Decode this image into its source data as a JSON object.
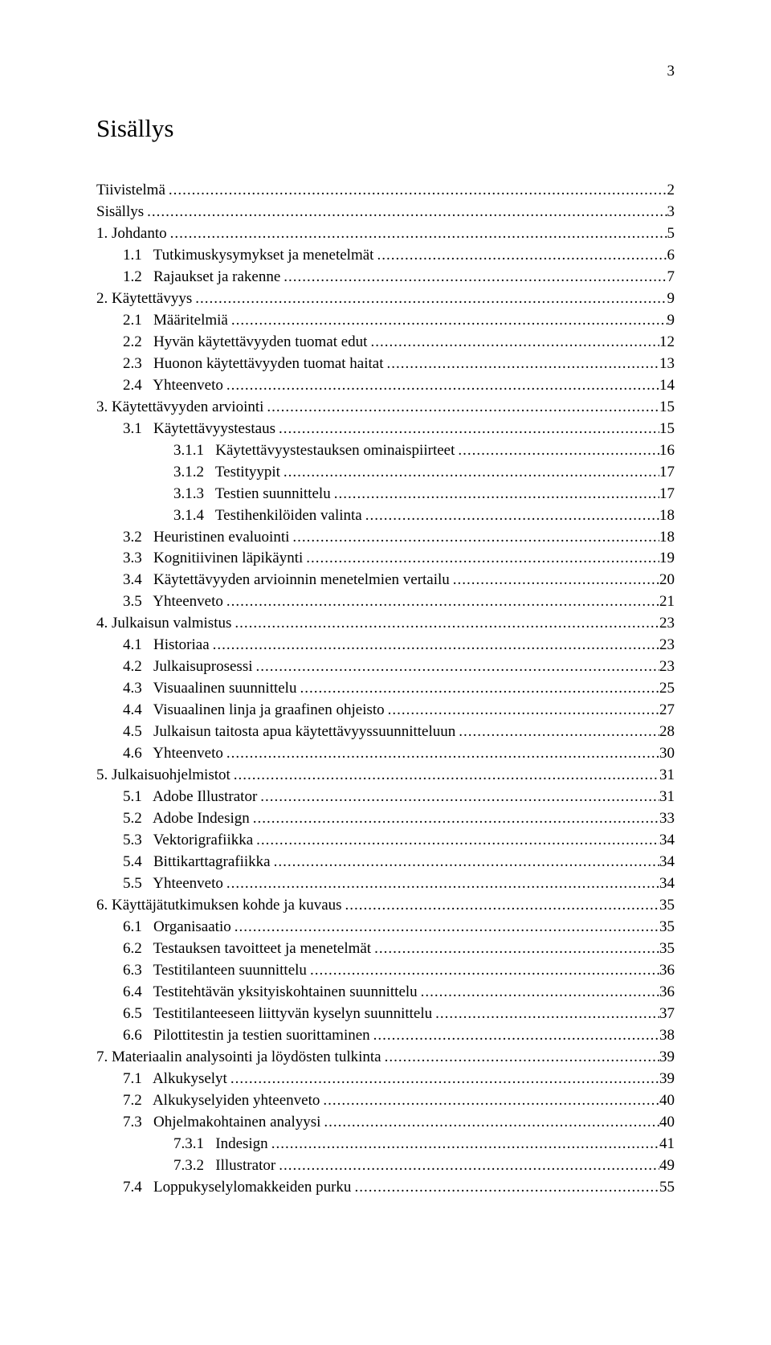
{
  "page_number": "3",
  "title": "Sisällys",
  "leader_char": ".",
  "toc": [
    {
      "label": "Tiivistelmä",
      "page": "2",
      "indent": 0
    },
    {
      "label": "Sisällys",
      "page": "3",
      "indent": 0
    },
    {
      "label": "1. Johdanto",
      "page": "5",
      "indent": 0
    },
    {
      "label": "1.1   Tutkimuskysymykset ja menetelmät",
      "page": "6",
      "indent": 1
    },
    {
      "label": "1.2   Rajaukset ja rakenne",
      "page": "7",
      "indent": 1
    },
    {
      "label": "2. Käytettävyys",
      "page": "9",
      "indent": 0
    },
    {
      "label": "2.1   Määritelmiä",
      "page": "9",
      "indent": 1
    },
    {
      "label": "2.2   Hyvän käytettävyyden tuomat edut",
      "page": "12",
      "indent": 1
    },
    {
      "label": "2.3   Huonon käytettävyyden tuomat haitat",
      "page": "13",
      "indent": 1
    },
    {
      "label": "2.4   Yhteenveto",
      "page": "14",
      "indent": 1
    },
    {
      "label": "3. Käytettävyyden arviointi",
      "page": "15",
      "indent": 0
    },
    {
      "label": "3.1   Käytettävyystestaus",
      "page": "15",
      "indent": 1
    },
    {
      "label": "3.1.1   Käytettävyystestauksen ominaispiirteet",
      "page": "16",
      "indent": 2
    },
    {
      "label": "3.1.2   Testityypit",
      "page": "17",
      "indent": 2
    },
    {
      "label": "3.1.3   Testien suunnittelu",
      "page": "17",
      "indent": 2
    },
    {
      "label": "3.1.4   Testihenkilöiden valinta",
      "page": "18",
      "indent": 2
    },
    {
      "label": "3.2   Heuristinen evaluointi",
      "page": "18",
      "indent": 1
    },
    {
      "label": "3.3   Kognitiivinen läpikäynti",
      "page": "19",
      "indent": 1
    },
    {
      "label": "3.4   Käytettävyyden arvioinnin menetelmien vertailu",
      "page": "20",
      "indent": 1
    },
    {
      "label": "3.5   Yhteenveto",
      "page": "21",
      "indent": 1
    },
    {
      "label": "4. Julkaisun valmistus",
      "page": "23",
      "indent": 0
    },
    {
      "label": "4.1   Historiaa",
      "page": "23",
      "indent": 1
    },
    {
      "label": "4.2   Julkaisuprosessi",
      "page": "23",
      "indent": 1
    },
    {
      "label": "4.3   Visuaalinen suunnittelu",
      "page": "25",
      "indent": 1
    },
    {
      "label": "4.4   Visuaalinen linja ja graafinen ohjeisto",
      "page": "27",
      "indent": 1
    },
    {
      "label": "4.5   Julkaisun taitosta apua käytettävyyssuunnitteluun",
      "page": "28",
      "indent": 1
    },
    {
      "label": "4.6   Yhteenveto",
      "page": "30",
      "indent": 1
    },
    {
      "label": "5. Julkaisuohjelmistot",
      "page": "31",
      "indent": 0
    },
    {
      "label": "5.1   Adobe Illustrator",
      "page": "31",
      "indent": 1
    },
    {
      "label": "5.2   Adobe Indesign",
      "page": "33",
      "indent": 1
    },
    {
      "label": "5.3   Vektorigrafiikka",
      "page": "34",
      "indent": 1
    },
    {
      "label": "5.4   Bittikarttagrafiikka",
      "page": "34",
      "indent": 1
    },
    {
      "label": "5.5   Yhteenveto",
      "page": "34",
      "indent": 1
    },
    {
      "label": "6. Käyttäjätutkimuksen kohde ja kuvaus",
      "page": "35",
      "indent": 0
    },
    {
      "label": "6.1   Organisaatio",
      "page": "35",
      "indent": 1
    },
    {
      "label": "6.2   Testauksen tavoitteet ja menetelmät",
      "page": "35",
      "indent": 1
    },
    {
      "label": "6.3   Testitilanteen suunnittelu",
      "page": "36",
      "indent": 1
    },
    {
      "label": "6.4   Testitehtävän yksityiskohtainen suunnittelu",
      "page": "36",
      "indent": 1
    },
    {
      "label": "6.5   Testitilanteeseen liittyvän kyselyn suunnittelu",
      "page": "37",
      "indent": 1
    },
    {
      "label": "6.6   Pilottitestin ja testien suorittaminen",
      "page": "38",
      "indent": 1
    },
    {
      "label": "7. Materiaalin analysointi ja löydösten tulkinta",
      "page": "39",
      "indent": 0
    },
    {
      "label": "7.1   Alkukyselyt",
      "page": "39",
      "indent": 1
    },
    {
      "label": "7.2   Alkukyselyiden yhteenveto",
      "page": "40",
      "indent": 1
    },
    {
      "label": "7.3   Ohjelmakohtainen analyysi",
      "page": "40",
      "indent": 1
    },
    {
      "label": "7.3.1   Indesign",
      "page": "41",
      "indent": 2
    },
    {
      "label": "7.3.2   Illustrator",
      "page": "49",
      "indent": 2
    },
    {
      "label": "7.4   Loppukyselylomakkeiden purku",
      "page": "55",
      "indent": 1
    }
  ]
}
